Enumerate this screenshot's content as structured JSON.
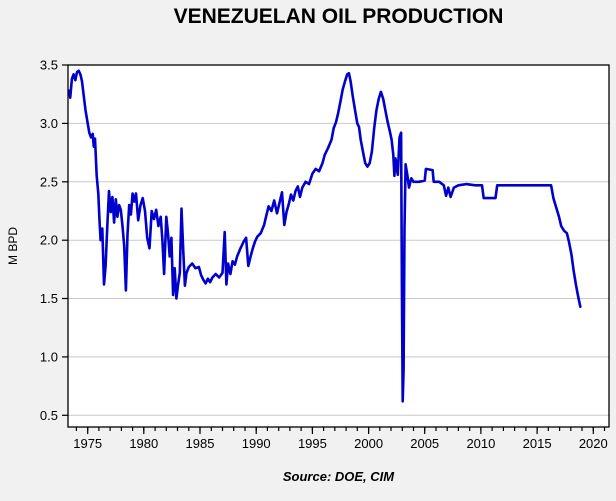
{
  "chart_data": {
    "type": "line",
    "title": "VENEZUELAN OIL PRODUCTION",
    "xlabel": "",
    "ylabel": "M BPD",
    "source": "Source:  DOE, CIM",
    "xlim": [
      1973.25,
      2021.4
    ],
    "ylim": [
      0.4,
      3.5
    ],
    "grid": "horizontal-only",
    "legend": "none",
    "x_ticks": [
      "1975",
      "1980",
      "1985",
      "1990",
      "1995",
      "2000",
      "2005",
      "2010",
      "2015",
      "2020"
    ],
    "x_minor_tick_from": 1974,
    "x_minor_tick_to": 2021,
    "y_ticks": [
      "0.5",
      "1.0",
      "1.5",
      "2.0",
      "2.5",
      "3.0",
      "3.5"
    ],
    "colors": {
      "line": "#0000CC",
      "grid": "#c9c9c9",
      "frame": "#000000",
      "plot_bg": "#ffffff",
      "page_bg": "#f1f1f1",
      "text": "#000000"
    },
    "series": [
      {
        "name": "Venezuelan oil production (M BPD)",
        "points": [
          [
            1973.35,
            3.28
          ],
          [
            1973.45,
            3.22
          ],
          [
            1973.6,
            3.38
          ],
          [
            1973.75,
            3.42
          ],
          [
            1973.9,
            3.37
          ],
          [
            1974.05,
            3.44
          ],
          [
            1974.2,
            3.45
          ],
          [
            1974.35,
            3.42
          ],
          [
            1974.5,
            3.36
          ],
          [
            1974.65,
            3.24
          ],
          [
            1974.8,
            3.12
          ],
          [
            1975.0,
            3.0
          ],
          [
            1975.15,
            2.92
          ],
          [
            1975.3,
            2.88
          ],
          [
            1975.45,
            2.91
          ],
          [
            1975.55,
            2.8
          ],
          [
            1975.65,
            2.87
          ],
          [
            1975.8,
            2.55
          ],
          [
            1975.95,
            2.4
          ],
          [
            1976.05,
            2.17
          ],
          [
            1976.15,
            2.0
          ],
          [
            1976.3,
            2.1
          ],
          [
            1976.45,
            1.62
          ],
          [
            1976.6,
            1.78
          ],
          [
            1976.75,
            2.12
          ],
          [
            1976.9,
            2.42
          ],
          [
            1977.05,
            2.24
          ],
          [
            1977.2,
            2.37
          ],
          [
            1977.35,
            2.15
          ],
          [
            1977.5,
            2.35
          ],
          [
            1977.65,
            2.2
          ],
          [
            1977.8,
            2.3
          ],
          [
            1977.95,
            2.26
          ],
          [
            1978.1,
            2.12
          ],
          [
            1978.25,
            1.95
          ],
          [
            1978.4,
            1.57
          ],
          [
            1978.55,
            2.05
          ],
          [
            1978.7,
            2.3
          ],
          [
            1978.85,
            2.22
          ],
          [
            1979.0,
            2.4
          ],
          [
            1979.15,
            2.33
          ],
          [
            1979.3,
            2.4
          ],
          [
            1979.5,
            2.17
          ],
          [
            1979.7,
            2.3
          ],
          [
            1979.9,
            2.36
          ],
          [
            1980.1,
            2.25
          ],
          [
            1980.3,
            2.02
          ],
          [
            1980.5,
            1.93
          ],
          [
            1980.7,
            2.25
          ],
          [
            1980.9,
            2.18
          ],
          [
            1981.1,
            2.26
          ],
          [
            1981.3,
            2.12
          ],
          [
            1981.5,
            2.2
          ],
          [
            1981.65,
            2.0
          ],
          [
            1981.8,
            1.71
          ],
          [
            1982.0,
            2.2
          ],
          [
            1982.15,
            2.06
          ],
          [
            1982.3,
            1.86
          ],
          [
            1982.45,
            2.02
          ],
          [
            1982.6,
            1.53
          ],
          [
            1982.75,
            1.76
          ],
          [
            1982.9,
            1.5
          ],
          [
            1983.05,
            1.62
          ],
          [
            1983.2,
            1.72
          ],
          [
            1983.35,
            2.27
          ],
          [
            1983.5,
            1.92
          ],
          [
            1983.65,
            1.61
          ],
          [
            1983.8,
            1.72
          ],
          [
            1984.0,
            1.77
          ],
          [
            1984.3,
            1.8
          ],
          [
            1984.6,
            1.76
          ],
          [
            1984.9,
            1.77
          ],
          [
            1985.1,
            1.7
          ],
          [
            1985.3,
            1.66
          ],
          [
            1985.5,
            1.63
          ],
          [
            1985.7,
            1.67
          ],
          [
            1985.9,
            1.64
          ],
          [
            1986.1,
            1.68
          ],
          [
            1986.4,
            1.71
          ],
          [
            1986.7,
            1.68
          ],
          [
            1987.0,
            1.72
          ],
          [
            1987.2,
            2.07
          ],
          [
            1987.35,
            1.62
          ],
          [
            1987.5,
            1.8
          ],
          [
            1987.7,
            1.71
          ],
          [
            1987.9,
            1.82
          ],
          [
            1988.1,
            1.79
          ],
          [
            1988.3,
            1.86
          ],
          [
            1988.6,
            1.93
          ],
          [
            1988.9,
            1.99
          ],
          [
            1989.1,
            2.02
          ],
          [
            1989.3,
            1.78
          ],
          [
            1989.5,
            1.86
          ],
          [
            1989.7,
            1.93
          ],
          [
            1989.9,
            1.99
          ],
          [
            1990.1,
            2.03
          ],
          [
            1990.4,
            2.06
          ],
          [
            1990.7,
            2.13
          ],
          [
            1990.9,
            2.21
          ],
          [
            1991.1,
            2.29
          ],
          [
            1991.35,
            2.25
          ],
          [
            1991.6,
            2.34
          ],
          [
            1991.85,
            2.23
          ],
          [
            1992.1,
            2.33
          ],
          [
            1992.3,
            2.41
          ],
          [
            1992.5,
            2.13
          ],
          [
            1992.7,
            2.24
          ],
          [
            1992.9,
            2.31
          ],
          [
            1993.1,
            2.39
          ],
          [
            1993.3,
            2.34
          ],
          [
            1993.5,
            2.42
          ],
          [
            1993.7,
            2.46
          ],
          [
            1993.9,
            2.37
          ],
          [
            1994.1,
            2.45
          ],
          [
            1994.4,
            2.5
          ],
          [
            1994.7,
            2.48
          ],
          [
            1995.0,
            2.57
          ],
          [
            1995.3,
            2.61
          ],
          [
            1995.6,
            2.59
          ],
          [
            1995.9,
            2.66
          ],
          [
            1996.1,
            2.73
          ],
          [
            1996.4,
            2.79
          ],
          [
            1996.7,
            2.86
          ],
          [
            1996.9,
            2.96
          ],
          [
            1997.1,
            3.01
          ],
          [
            1997.3,
            3.09
          ],
          [
            1997.5,
            3.19
          ],
          [
            1997.7,
            3.29
          ],
          [
            1997.9,
            3.36
          ],
          [
            1998.1,
            3.42
          ],
          [
            1998.25,
            3.43
          ],
          [
            1998.4,
            3.36
          ],
          [
            1998.6,
            3.23
          ],
          [
            1998.8,
            3.11
          ],
          [
            1999.0,
            3.0
          ],
          [
            1999.15,
            2.97
          ],
          [
            1999.3,
            2.86
          ],
          [
            1999.5,
            2.76
          ],
          [
            1999.7,
            2.66
          ],
          [
            1999.9,
            2.63
          ],
          [
            2000.1,
            2.66
          ],
          [
            2000.3,
            2.76
          ],
          [
            2000.5,
            2.96
          ],
          [
            2000.7,
            3.11
          ],
          [
            2000.9,
            3.21
          ],
          [
            2001.1,
            3.27
          ],
          [
            2001.3,
            3.21
          ],
          [
            2001.5,
            3.11
          ],
          [
            2001.7,
            3.01
          ],
          [
            2001.9,
            2.93
          ],
          [
            2002.05,
            2.86
          ],
          [
            2002.2,
            2.73
          ],
          [
            2002.3,
            2.55
          ],
          [
            2002.4,
            2.7
          ],
          [
            2002.5,
            2.63
          ],
          [
            2002.6,
            2.56
          ],
          [
            2002.75,
            2.88
          ],
          [
            2002.9,
            2.92
          ],
          [
            2002.97,
            1.6
          ],
          [
            2003.04,
            0.62
          ],
          [
            2003.12,
            0.9
          ],
          [
            2003.2,
            2.1
          ],
          [
            2003.3,
            2.65
          ],
          [
            2003.45,
            2.56
          ],
          [
            2003.6,
            2.45
          ],
          [
            2003.8,
            2.53
          ],
          [
            2004.0,
            2.5
          ],
          [
            2004.5,
            2.5
          ],
          [
            2005.0,
            2.51
          ],
          [
            2005.1,
            2.61
          ],
          [
            2005.7,
            2.6
          ],
          [
            2005.8,
            2.5
          ],
          [
            2006.3,
            2.5
          ],
          [
            2006.7,
            2.47
          ],
          [
            2006.9,
            2.38
          ],
          [
            2007.1,
            2.45
          ],
          [
            2007.3,
            2.37
          ],
          [
            2007.6,
            2.45
          ],
          [
            2008.0,
            2.47
          ],
          [
            2008.7,
            2.48
          ],
          [
            2009.5,
            2.47
          ],
          [
            2010.1,
            2.47
          ],
          [
            2010.25,
            2.36
          ],
          [
            2011.3,
            2.36
          ],
          [
            2011.45,
            2.47
          ],
          [
            2012.5,
            2.47
          ],
          [
            2014.0,
            2.47
          ],
          [
            2015.5,
            2.47
          ],
          [
            2016.25,
            2.47
          ],
          [
            2016.45,
            2.36
          ],
          [
            2016.7,
            2.28
          ],
          [
            2016.95,
            2.2
          ],
          [
            2017.15,
            2.12
          ],
          [
            2017.4,
            2.08
          ],
          [
            2017.65,
            2.06
          ],
          [
            2017.85,
            1.98
          ],
          [
            2018.05,
            1.88
          ],
          [
            2018.25,
            1.74
          ],
          [
            2018.45,
            1.62
          ],
          [
            2018.65,
            1.52
          ],
          [
            2018.85,
            1.43
          ]
        ]
      }
    ]
  }
}
